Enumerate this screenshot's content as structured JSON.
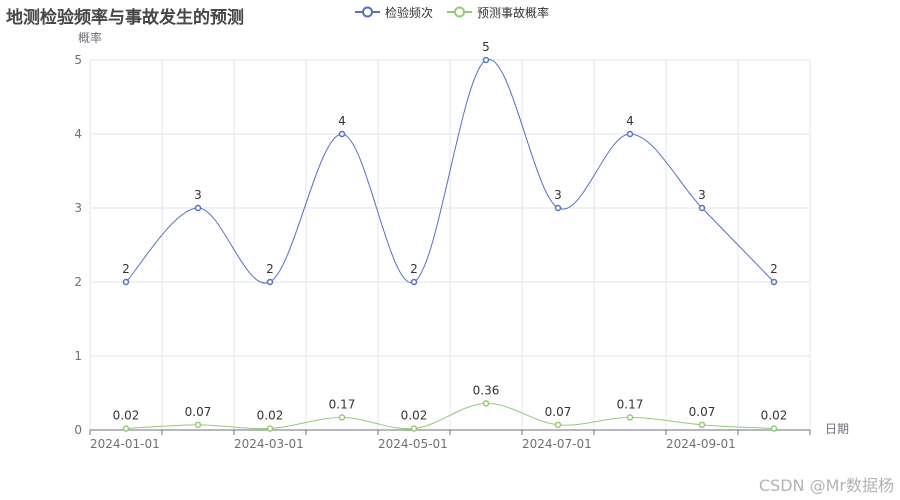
{
  "title": "地测检验频率与事故发生的预测",
  "watermark": "CSDN @Mr数据杨",
  "chart_data": {
    "type": "line",
    "smooth": true,
    "yname": "概率",
    "xname": "日期",
    "ylim": [
      0,
      5
    ],
    "yticks": [
      0,
      1,
      2,
      3,
      4,
      5
    ],
    "x": [
      "2024-01-01",
      "2024-02-01",
      "2024-03-01",
      "2024-04-01",
      "2024-05-01",
      "2024-06-01",
      "2024-07-01",
      "2024-08-01",
      "2024-09-01",
      "2024-10-01"
    ],
    "xtick_labels": [
      "2024-01-01",
      "2024-03-01",
      "2024-05-01",
      "2024-07-01",
      "2024-09-01"
    ],
    "grid": true,
    "legend_position": "top-center",
    "series": [
      {
        "name": "检验频次",
        "color": "#5470c6",
        "values": [
          2,
          3,
          2,
          4,
          2,
          5,
          3,
          4,
          3,
          2
        ],
        "labels": [
          "2",
          "3",
          "2",
          "4",
          "2",
          "5",
          "3",
          "4",
          "3",
          "2"
        ]
      },
      {
        "name": "预测事故概率",
        "color": "#91cc75",
        "values": [
          0.02,
          0.07,
          0.02,
          0.17,
          0.02,
          0.36,
          0.07,
          0.17,
          0.07,
          0.02
        ],
        "labels": [
          "0.02",
          "0.07",
          "0.02",
          "0.17",
          "0.02",
          "0.36",
          "0.07",
          "0.17",
          "0.07",
          "0.02"
        ]
      }
    ]
  }
}
